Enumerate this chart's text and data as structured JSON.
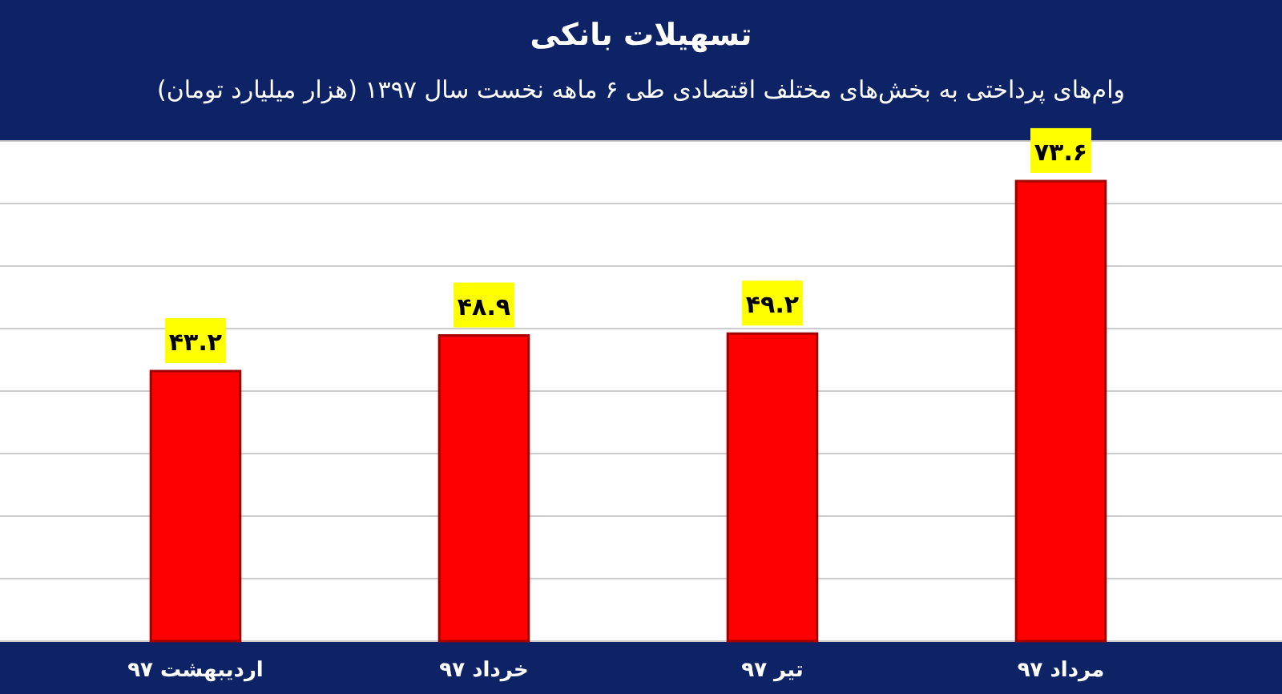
{
  "chart_data": {
    "type": "bar",
    "title": "تسهیلات بانکی",
    "subtitle": "وام‌های پرداختی به بخش‌های مختلف اقتصادی طی ۶ ماهه نخست سال ۱۳۹۷ (هزار میلیارد تومان)",
    "categories": [
      "اردیبهشت ۹۷",
      "خرداد ۹۷",
      "تیر ۹۷",
      "مرداد ۹۷"
    ],
    "values": [
      43.2,
      48.9,
      49.2,
      73.6
    ],
    "value_labels": [
      "۴۳.۲",
      "۴۸.۹",
      "۴۹.۲",
      "۷۳.۶"
    ],
    "color": "#ff0000",
    "ylim": [
      0,
      80
    ],
    "yticks": [
      {
        "value": 0,
        "label": null
      },
      {
        "value": 10,
        "label": null
      },
      {
        "value": 20,
        "label": null
      },
      {
        "value": 30,
        "label": null
      },
      {
        "value": 40,
        "label": null
      },
      {
        "value": 50,
        "label": null
      },
      {
        "value": 60,
        "label": null
      },
      {
        "value": 70,
        "label": null
      },
      {
        "value": 80,
        "label": null
      }
    ],
    "grid": "y"
  }
}
